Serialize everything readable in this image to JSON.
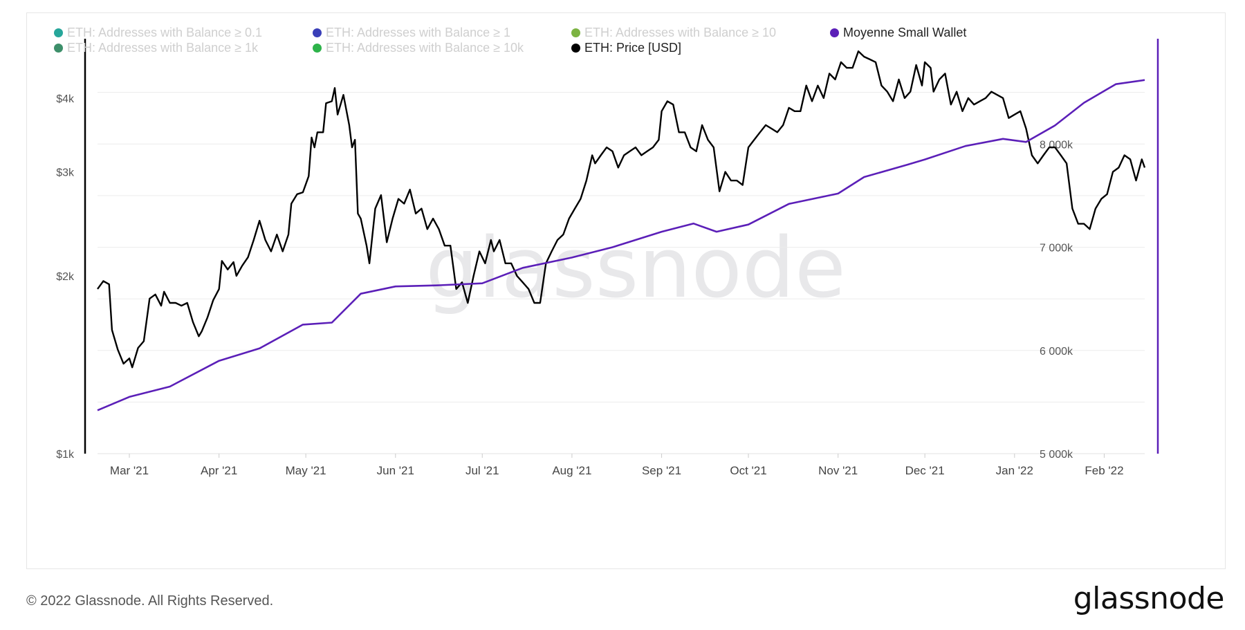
{
  "footer": {
    "copyright": "© 2022 Glassnode. All Rights Reserved.",
    "logo_text": "glassnode"
  },
  "watermark": "glassnode",
  "legend": [
    {
      "label": "ETH: Addresses with Balance ≥ 0.1",
      "color": "#26a69a",
      "active": false
    },
    {
      "label": "ETH: Addresses with Balance ≥ 1",
      "color": "#3a3fb8",
      "active": false
    },
    {
      "label": "ETH: Addresses with Balance ≥ 10",
      "color": "#7cb342",
      "active": false
    },
    {
      "label": "Moyenne Small Wallet",
      "color": "#5b1fb8",
      "active": true
    },
    {
      "label": "ETH: Addresses with Balance ≥ 1k",
      "color": "#3d8f6a",
      "active": false
    },
    {
      "label": "ETH: Addresses with Balance ≥ 10k",
      "color": "#2db34a",
      "active": false
    },
    {
      "label": "ETH: Price [USD]",
      "color": "#000000",
      "active": true
    }
  ],
  "chart_data": {
    "type": "line",
    "x_ticks": [
      "Mar '21",
      "Apr '21",
      "May '21",
      "Jun '21",
      "Jul '21",
      "Aug '21",
      "Sep '21",
      "Oct '21",
      "Nov '21",
      "Dec '21",
      "Jan '22",
      "Feb '22"
    ],
    "left_axis": {
      "scale": "log",
      "range": [
        1000,
        5000
      ],
      "ticks": [
        1000,
        2000,
        3000,
        4000
      ],
      "tick_labels": [
        "$1k",
        "$2k",
        "$3k",
        "$4k"
      ]
    },
    "right_axis": {
      "scale": "linear",
      "range": [
        5000000,
        9000000
      ],
      "ticks": [
        5000000,
        6000000,
        7000000,
        8000000
      ],
      "tick_labels": [
        "5 000k",
        "6 000k",
        "7 000k",
        "8 000k"
      ]
    },
    "grid": true,
    "x_range": [
      "2021-02-18",
      "2022-02-15"
    ],
    "series": [
      {
        "name": "ETH: Price [USD]",
        "axis": "left",
        "color": "#000000",
        "points": [
          [
            "2021-02-18",
            1900
          ],
          [
            "2021-02-20",
            1960
          ],
          [
            "2021-02-22",
            1935
          ],
          [
            "2021-02-23",
            1620
          ],
          [
            "2021-02-25",
            1500
          ],
          [
            "2021-02-27",
            1420
          ],
          [
            "2021-03-01",
            1450
          ],
          [
            "2021-03-02",
            1400
          ],
          [
            "2021-03-04",
            1510
          ],
          [
            "2021-03-06",
            1550
          ],
          [
            "2021-03-08",
            1830
          ],
          [
            "2021-03-10",
            1860
          ],
          [
            "2021-03-12",
            1780
          ],
          [
            "2021-03-13",
            1880
          ],
          [
            "2021-03-15",
            1800
          ],
          [
            "2021-03-17",
            1800
          ],
          [
            "2021-03-19",
            1780
          ],
          [
            "2021-03-21",
            1800
          ],
          [
            "2021-03-23",
            1670
          ],
          [
            "2021-03-25",
            1580
          ],
          [
            "2021-03-26",
            1610
          ],
          [
            "2021-03-28",
            1700
          ],
          [
            "2021-03-30",
            1820
          ],
          [
            "2021-04-01",
            1900
          ],
          [
            "2021-04-02",
            2120
          ],
          [
            "2021-04-04",
            2050
          ],
          [
            "2021-04-06",
            2110
          ],
          [
            "2021-04-07",
            2000
          ],
          [
            "2021-04-09",
            2080
          ],
          [
            "2021-04-11",
            2150
          ],
          [
            "2021-04-13",
            2300
          ],
          [
            "2021-04-15",
            2480
          ],
          [
            "2021-04-17",
            2300
          ],
          [
            "2021-04-19",
            2200
          ],
          [
            "2021-04-21",
            2350
          ],
          [
            "2021-04-23",
            2200
          ],
          [
            "2021-04-25",
            2350
          ],
          [
            "2021-04-26",
            2650
          ],
          [
            "2021-04-28",
            2750
          ],
          [
            "2021-04-30",
            2770
          ],
          [
            "2021-05-02",
            2950
          ],
          [
            "2021-05-03",
            3430
          ],
          [
            "2021-05-04",
            3300
          ],
          [
            "2021-05-05",
            3500
          ],
          [
            "2021-05-07",
            3500
          ],
          [
            "2021-05-08",
            3920
          ],
          [
            "2021-05-10",
            3950
          ],
          [
            "2021-05-11",
            4160
          ],
          [
            "2021-05-12",
            3750
          ],
          [
            "2021-05-14",
            4050
          ],
          [
            "2021-05-16",
            3600
          ],
          [
            "2021-05-17",
            3300
          ],
          [
            "2021-05-18",
            3400
          ],
          [
            "2021-05-19",
            2550
          ],
          [
            "2021-05-20",
            2500
          ],
          [
            "2021-05-22",
            2250
          ],
          [
            "2021-05-23",
            2100
          ],
          [
            "2021-05-25",
            2600
          ],
          [
            "2021-05-27",
            2740
          ],
          [
            "2021-05-29",
            2280
          ],
          [
            "2021-05-31",
            2500
          ],
          [
            "2021-06-02",
            2700
          ],
          [
            "2021-06-04",
            2650
          ],
          [
            "2021-06-06",
            2800
          ],
          [
            "2021-06-08",
            2550
          ],
          [
            "2021-06-10",
            2600
          ],
          [
            "2021-06-12",
            2400
          ],
          [
            "2021-06-14",
            2500
          ],
          [
            "2021-06-16",
            2400
          ],
          [
            "2021-06-18",
            2250
          ],
          [
            "2021-06-20",
            2250
          ],
          [
            "2021-06-22",
            1900
          ],
          [
            "2021-06-24",
            1950
          ],
          [
            "2021-06-26",
            1800
          ],
          [
            "2021-06-28",
            2000
          ],
          [
            "2021-06-30",
            2200
          ],
          [
            "2021-07-02",
            2100
          ],
          [
            "2021-07-04",
            2300
          ],
          [
            "2021-07-05",
            2200
          ],
          [
            "2021-07-07",
            2300
          ],
          [
            "2021-07-09",
            2100
          ],
          [
            "2021-07-11",
            2100
          ],
          [
            "2021-07-13",
            2000
          ],
          [
            "2021-07-15",
            1950
          ],
          [
            "2021-07-17",
            1900
          ],
          [
            "2021-07-19",
            1800
          ],
          [
            "2021-07-21",
            1800
          ],
          [
            "2021-07-23",
            2100
          ],
          [
            "2021-07-25",
            2200
          ],
          [
            "2021-07-27",
            2300
          ],
          [
            "2021-07-29",
            2350
          ],
          [
            "2021-07-31",
            2500
          ],
          [
            "2021-08-02",
            2600
          ],
          [
            "2021-08-04",
            2700
          ],
          [
            "2021-08-06",
            2900
          ],
          [
            "2021-08-08",
            3200
          ],
          [
            "2021-08-09",
            3100
          ],
          [
            "2021-08-11",
            3200
          ],
          [
            "2021-08-13",
            3300
          ],
          [
            "2021-08-15",
            3250
          ],
          [
            "2021-08-17",
            3050
          ],
          [
            "2021-08-19",
            3200
          ],
          [
            "2021-08-21",
            3250
          ],
          [
            "2021-08-23",
            3300
          ],
          [
            "2021-08-25",
            3200
          ],
          [
            "2021-08-27",
            3250
          ],
          [
            "2021-08-29",
            3300
          ],
          [
            "2021-08-31",
            3400
          ],
          [
            "2021-09-01",
            3800
          ],
          [
            "2021-09-03",
            3950
          ],
          [
            "2021-09-05",
            3900
          ],
          [
            "2021-09-07",
            3500
          ],
          [
            "2021-09-09",
            3500
          ],
          [
            "2021-09-11",
            3300
          ],
          [
            "2021-09-13",
            3250
          ],
          [
            "2021-09-15",
            3600
          ],
          [
            "2021-09-17",
            3400
          ],
          [
            "2021-09-19",
            3300
          ],
          [
            "2021-09-21",
            2780
          ],
          [
            "2021-09-23",
            3000
          ],
          [
            "2021-09-25",
            2900
          ],
          [
            "2021-09-27",
            2900
          ],
          [
            "2021-09-29",
            2850
          ],
          [
            "2021-10-01",
            3300
          ],
          [
            "2021-10-03",
            3400
          ],
          [
            "2021-10-05",
            3500
          ],
          [
            "2021-10-07",
            3600
          ],
          [
            "2021-10-09",
            3550
          ],
          [
            "2021-10-11",
            3500
          ],
          [
            "2021-10-13",
            3600
          ],
          [
            "2021-10-15",
            3850
          ],
          [
            "2021-10-17",
            3800
          ],
          [
            "2021-10-19",
            3800
          ],
          [
            "2021-10-21",
            4200
          ],
          [
            "2021-10-23",
            3950
          ],
          [
            "2021-10-25",
            4200
          ],
          [
            "2021-10-27",
            4000
          ],
          [
            "2021-10-29",
            4400
          ],
          [
            "2021-10-31",
            4300
          ],
          [
            "2021-11-02",
            4600
          ],
          [
            "2021-11-04",
            4500
          ],
          [
            "2021-11-06",
            4500
          ],
          [
            "2021-11-08",
            4800
          ],
          [
            "2021-11-10",
            4700
          ],
          [
            "2021-11-12",
            4650
          ],
          [
            "2021-11-14",
            4600
          ],
          [
            "2021-11-16",
            4200
          ],
          [
            "2021-11-18",
            4100
          ],
          [
            "2021-11-20",
            3950
          ],
          [
            "2021-11-22",
            4300
          ],
          [
            "2021-11-24",
            4000
          ],
          [
            "2021-11-26",
            4100
          ],
          [
            "2021-11-28",
            4550
          ],
          [
            "2021-11-30",
            4200
          ],
          [
            "2021-12-01",
            4600
          ],
          [
            "2021-12-03",
            4500
          ],
          [
            "2021-12-04",
            4100
          ],
          [
            "2021-12-06",
            4300
          ],
          [
            "2021-12-08",
            4400
          ],
          [
            "2021-12-10",
            3900
          ],
          [
            "2021-12-12",
            4100
          ],
          [
            "2021-12-14",
            3800
          ],
          [
            "2021-12-16",
            4000
          ],
          [
            "2021-12-18",
            3900
          ],
          [
            "2021-12-20",
            3950
          ],
          [
            "2021-12-22",
            4000
          ],
          [
            "2021-12-24",
            4100
          ],
          [
            "2021-12-26",
            4050
          ],
          [
            "2021-12-28",
            4000
          ],
          [
            "2021-12-30",
            3700
          ],
          [
            "2022-01-01",
            3750
          ],
          [
            "2022-01-03",
            3800
          ],
          [
            "2022-01-05",
            3550
          ],
          [
            "2022-01-07",
            3200
          ],
          [
            "2022-01-09",
            3100
          ],
          [
            "2022-01-11",
            3200
          ],
          [
            "2022-01-13",
            3300
          ],
          [
            "2022-01-15",
            3300
          ],
          [
            "2022-01-17",
            3200
          ],
          [
            "2022-01-19",
            3100
          ],
          [
            "2022-01-21",
            2600
          ],
          [
            "2022-01-23",
            2450
          ],
          [
            "2022-01-25",
            2450
          ],
          [
            "2022-01-27",
            2400
          ],
          [
            "2022-01-29",
            2600
          ],
          [
            "2022-01-31",
            2700
          ],
          [
            "2022-02-02",
            2750
          ],
          [
            "2022-02-04",
            3000
          ],
          [
            "2022-02-06",
            3050
          ],
          [
            "2022-02-08",
            3200
          ],
          [
            "2022-02-10",
            3150
          ],
          [
            "2022-02-12",
            2900
          ],
          [
            "2022-02-14",
            3150
          ],
          [
            "2022-02-15",
            3050
          ]
        ]
      },
      {
        "name": "Moyenne Small Wallet",
        "axis": "right",
        "color": "#5b1fb8",
        "points": [
          [
            "2021-02-18",
            5420000
          ],
          [
            "2021-03-01",
            5550000
          ],
          [
            "2021-03-15",
            5650000
          ],
          [
            "2021-04-01",
            5900000
          ],
          [
            "2021-04-15",
            6020000
          ],
          [
            "2021-04-30",
            6250000
          ],
          [
            "2021-05-10",
            6270000
          ],
          [
            "2021-05-20",
            6550000
          ],
          [
            "2021-06-01",
            6620000
          ],
          [
            "2021-06-15",
            6630000
          ],
          [
            "2021-07-01",
            6650000
          ],
          [
            "2021-07-15",
            6800000
          ],
          [
            "2021-08-01",
            6900000
          ],
          [
            "2021-08-15",
            7000000
          ],
          [
            "2021-09-01",
            7150000
          ],
          [
            "2021-09-12",
            7230000
          ],
          [
            "2021-09-20",
            7150000
          ],
          [
            "2021-10-01",
            7220000
          ],
          [
            "2021-10-15",
            7420000
          ],
          [
            "2021-11-01",
            7520000
          ],
          [
            "2021-11-10",
            7680000
          ],
          [
            "2021-11-25",
            7800000
          ],
          [
            "2021-12-01",
            7850000
          ],
          [
            "2021-12-15",
            7980000
          ],
          [
            "2021-12-28",
            8050000
          ],
          [
            "2022-01-05",
            8020000
          ],
          [
            "2022-01-15",
            8180000
          ],
          [
            "2022-01-25",
            8400000
          ],
          [
            "2022-02-05",
            8580000
          ],
          [
            "2022-02-15",
            8620000
          ]
        ]
      }
    ]
  }
}
